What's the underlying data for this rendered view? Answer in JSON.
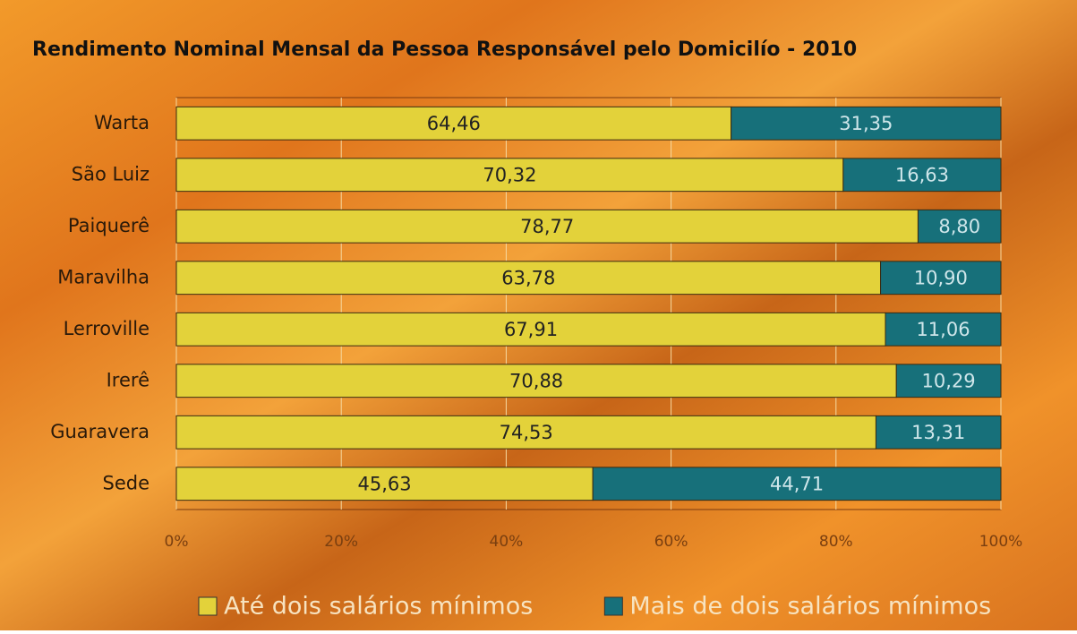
{
  "chart_data": {
    "type": "bar",
    "orientation": "horizontal",
    "stacking": "percent",
    "title": "Rendimento Nominal Mensal da Pessoa Responsável pelo Domicilío - 2010",
    "categories": [
      "Warta",
      "São Luiz",
      "Paiquerê",
      "Maravilha",
      "Lerroville",
      "Irerê",
      "Guaravera",
      "Sede"
    ],
    "series": [
      {
        "name": "Até dois salários mínimos",
        "color": "#e3d23a",
        "values": [
          64.46,
          70.32,
          78.77,
          63.78,
          67.91,
          70.88,
          74.53,
          45.63
        ],
        "value_labels": [
          "64,46",
          "70,32",
          "78,77",
          "63,78",
          "67,91",
          "70,88",
          "74,53",
          "45,63"
        ]
      },
      {
        "name": "Mais de dois salários mínimos",
        "color": "#17707a",
        "values": [
          31.35,
          16.63,
          8.8,
          10.9,
          11.06,
          10.29,
          13.31,
          44.71
        ],
        "value_labels": [
          "31,35",
          "16,63",
          "8,80",
          "10,90",
          "11,06",
          "10,29",
          "13,31",
          "44,71"
        ]
      }
    ],
    "xlim": [
      0,
      100
    ],
    "xticks": [
      {
        "value": 0,
        "label": "0%"
      },
      {
        "value": 20,
        "label": "20%"
      },
      {
        "value": 40,
        "label": "40%"
      },
      {
        "value": 60,
        "label": "60%"
      },
      {
        "value": 80,
        "label": "80%"
      },
      {
        "value": 100,
        "label": "100%"
      }
    ],
    "grid": true,
    "legend": "bottom"
  }
}
